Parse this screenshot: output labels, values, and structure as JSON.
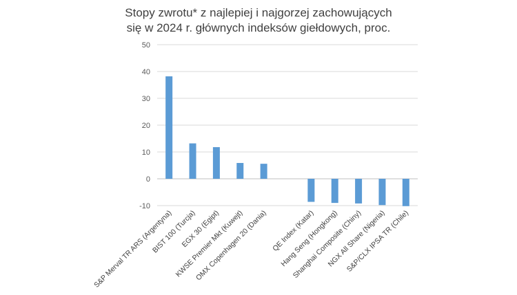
{
  "title_line1": "Stopy zwrotu* z najlepiej i najgorzej zachowujących",
  "title_line2": "się w 2024 r. głównych indeksów giełdowych, proc.",
  "chart_data": {
    "type": "bar",
    "title": "Stopy zwrotu* z najlepiej i najgorzej zachowujących się w 2024 r. głównych indeksów giełdowych, proc.",
    "xlabel": "",
    "ylabel": "",
    "ylim": [
      -10,
      50
    ],
    "yticks": [
      -10,
      0,
      10,
      20,
      30,
      40,
      50
    ],
    "grid": true,
    "bar_color": "#5b9bd5",
    "categories": [
      "S&P Merval TR ARS (Argentyna)",
      "BIST 100 (Turcja)",
      "EGX 30 (Egipt)",
      "KWSE Premier Mkt (Kuwejt)",
      "OMX Copenhagen 20 (Dania)",
      "",
      "QE Index (Katar)",
      "Hang Seng (Hongkong)",
      "Shanghai Composite (Chiny)",
      "NGX All Share (Nigeria)",
      "S&P/CLX IPSA TR (Chile)"
    ],
    "values": [
      38.2,
      13.2,
      11.8,
      5.9,
      5.6,
      null,
      -8.6,
      -9.0,
      -9.2,
      -9.8,
      -10.2
    ]
  }
}
